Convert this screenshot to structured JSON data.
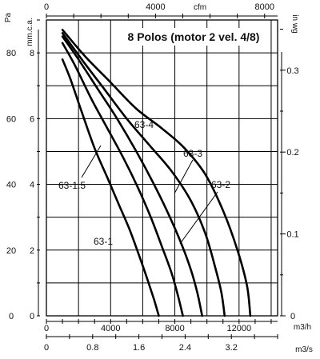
{
  "chart_data": {
    "type": "line",
    "title": "8 Polos (motor 2 vel. 4/8)",
    "axes": {
      "left_outer": {
        "unit": "Pa",
        "range": [
          0,
          90
        ],
        "ticks": [
          0,
          20,
          40,
          60,
          80
        ]
      },
      "left_inner": {
        "unit": "mm.c.a.",
        "range": [
          0,
          9
        ],
        "ticks": [
          0,
          2,
          4,
          6,
          8
        ]
      },
      "right": {
        "unit": "in wg",
        "range": [
          0,
          0.3613
        ],
        "ticks": [
          0,
          0.1,
          0.2,
          0.3
        ]
      },
      "top": {
        "unit": "cfm",
        "range": [
          0,
          8476
        ],
        "ticks": [
          0,
          4000,
          8000
        ]
      },
      "bottom_inner": {
        "unit": "m3/h",
        "range": [
          0,
          14400
        ],
        "ticks": [
          0,
          4000,
          8000,
          12000
        ]
      },
      "bottom_outer": {
        "unit": "m3/s",
        "range": [
          0,
          4.0
        ],
        "ticks": [
          0,
          0.8,
          1.6,
          2.4,
          3.2
        ]
      }
    },
    "x_unit": "m3/h",
    "y_unit": "mm.c.a.",
    "grid": true,
    "series": [
      {
        "name": "63-1",
        "x": [
          1000,
          1500,
          2200,
          3000,
          3800,
          4500,
          5200,
          5800,
          6300,
          6700,
          7000
        ],
        "y": [
          7.8,
          7.2,
          6.2,
          5.1,
          4.2,
          3.4,
          2.6,
          1.8,
          1.1,
          0.5,
          0.0
        ]
      },
      {
        "name": "63-1.5",
        "x": [
          1000,
          1800,
          2800,
          3800,
          4800,
          5700,
          6500,
          7200,
          7800,
          8200,
          8500
        ],
        "y": [
          8.3,
          7.6,
          6.6,
          5.7,
          4.8,
          3.9,
          3.0,
          2.1,
          1.3,
          0.6,
          0.0
        ]
      },
      {
        "name": "63-2",
        "x": [
          1000,
          2000,
          3200,
          4400,
          5600,
          6700,
          7600,
          8400,
          9000,
          9400,
          9700
        ],
        "y": [
          8.5,
          7.8,
          6.9,
          6.0,
          5.0,
          4.0,
          3.1,
          2.2,
          1.4,
          0.7,
          0.0
        ]
      },
      {
        "name": "63-3",
        "x": [
          1000,
          2200,
          3600,
          5000,
          6400,
          7800,
          9000,
          9900,
          10500,
          10900,
          11100
        ],
        "y": [
          8.6,
          7.8,
          6.9,
          6.0,
          5.2,
          4.4,
          3.5,
          2.5,
          1.5,
          0.7,
          0.0
        ]
      },
      {
        "name": "63-4",
        "x": [
          1000,
          2400,
          4000,
          5600,
          7200,
          8600,
          9900,
          11000,
          11900,
          12500,
          12700
        ],
        "y": [
          8.7,
          7.9,
          7.1,
          6.3,
          5.7,
          5.1,
          4.3,
          3.2,
          2.0,
          0.9,
          0.0
        ]
      }
    ],
    "annotations": [
      "63-1",
      "63-1.5",
      "63-2",
      "63-3",
      "63-4"
    ]
  }
}
